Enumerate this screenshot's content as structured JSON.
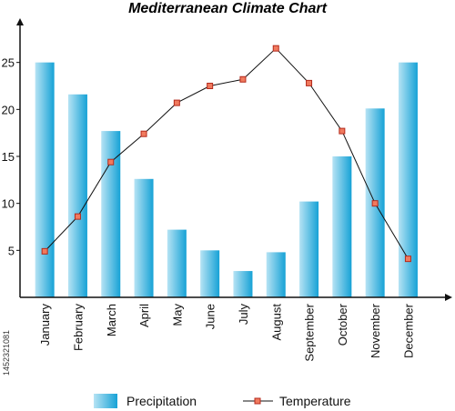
{
  "colors": {
    "bar_light": "#b6e3f4",
    "bar_dark": "#16a2d6",
    "line": "#111111",
    "marker_fill": "#f07a5e",
    "marker_stroke": "#b52a1c",
    "axis": "#111111",
    "text": "#111111"
  },
  "side_text": "1452321081",
  "chart_data": {
    "type": "bar",
    "title": "Mediterranean Climate Chart",
    "xlabel": "",
    "ylabel": "",
    "ylim": [
      0,
      30
    ],
    "y_ticks": [
      5,
      10,
      15,
      20,
      25
    ],
    "grid": false,
    "legend_position": "bottom",
    "categories": [
      "January",
      "February",
      "March",
      "April",
      "May",
      "June",
      "July",
      "August",
      "September",
      "October",
      "November",
      "December"
    ],
    "series": [
      {
        "name": "Precipitation",
        "type": "bar",
        "values": [
          25,
          21.6,
          17.7,
          12.6,
          7.2,
          5.0,
          2.8,
          4.8,
          10.2,
          15.0,
          20.1,
          25.0
        ]
      },
      {
        "name": "Temperature",
        "type": "line",
        "values": [
          4.9,
          8.6,
          14.4,
          17.4,
          20.7,
          22.5,
          23.2,
          26.5,
          22.8,
          17.7,
          10.0,
          4.1
        ]
      }
    ]
  }
}
